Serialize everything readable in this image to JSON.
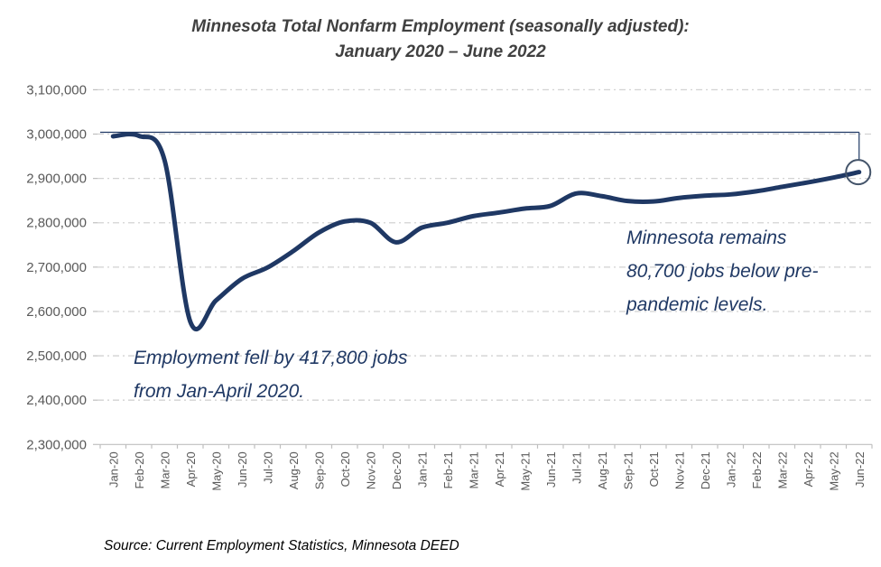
{
  "title": {
    "line1": "Minnesota Total Nonfarm Employment (seasonally adjusted):",
    "line2": "January 2020 – June 2022"
  },
  "annotations": {
    "drop": {
      "line1": "Employment fell by 417,800 jobs",
      "line2": "from Jan-April 2020."
    },
    "remain": {
      "line1": "Minnesota remains",
      "line2": "80,700 jobs below pre-",
      "line3": "pandemic levels."
    }
  },
  "source": "Source: Current Employment Statistics, Minnesota DEED",
  "chart_data": {
    "type": "line",
    "title": "Minnesota Total Nonfarm Employment (seasonally adjusted): January 2020 – June 2022",
    "xlabel": "",
    "ylabel": "",
    "ylim": [
      2300000,
      3100000
    ],
    "ytick_step": 100000,
    "grid": "horizontal-dashed",
    "legend": "none",
    "categories": [
      "Jan-20",
      "Feb-20",
      "Mar-20",
      "Apr-20",
      "May-20",
      "Jun-20",
      "Jul-20",
      "Aug-20",
      "Sep-20",
      "Oct-20",
      "Nov-20",
      "Dec-20",
      "Jan-21",
      "Feb-21",
      "Mar-21",
      "Apr-21",
      "May-21",
      "Jun-21",
      "Jul-21",
      "Aug-21",
      "Sep-21",
      "Oct-21",
      "Nov-21",
      "Dec-21",
      "Jan-22",
      "Feb-22",
      "Mar-22",
      "Apr-22",
      "May-22",
      "Jun-22"
    ],
    "series": [
      {
        "name": "Total Nonfarm Employment",
        "values": [
          2995000,
          2996100,
          2941500,
          2577200,
          2624800,
          2673300,
          2699000,
          2736000,
          2778000,
          2803000,
          2800000,
          2756000,
          2789000,
          2800000,
          2815000,
          2823000,
          2832000,
          2838000,
          2866000,
          2860000,
          2849000,
          2848000,
          2856000,
          2861000,
          2864000,
          2871000,
          2881000,
          2891000,
          2902000,
          2914300
        ]
      }
    ],
    "reference_line": {
      "description": "pre-pandemic level line from Jan-20 with vertical drop to Jun-22 end marker",
      "level": 3000000
    },
    "end_marker": {
      "shape": "open-circle",
      "at_category": "Jun-22",
      "value": 2914300
    }
  },
  "colors": {
    "line": "#1F3864",
    "annotation_text": "#1F3864",
    "title_text": "#404040",
    "axis_text": "#595959",
    "gridline": "#D2D2D2",
    "axis_line": "#BFBFBF",
    "marker_ring": "#44546A",
    "background": "#FFFFFF"
  }
}
